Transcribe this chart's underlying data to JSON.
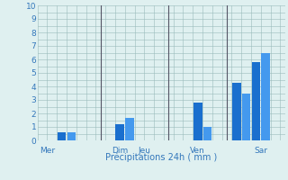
{
  "xlabel": "Précipitations 24h ( mm )",
  "background_color": "#dff0f0",
  "ylim": [
    0,
    10
  ],
  "yticks": [
    0,
    1,
    2,
    3,
    4,
    5,
    6,
    7,
    8,
    9,
    10
  ],
  "day_labels": [
    "Mer",
    "Dim",
    "Jeu",
    "Ven",
    "Sar"
  ],
  "bars": [
    {
      "x": 3,
      "height": 0.6,
      "color": "#1a6fce"
    },
    {
      "x": 4,
      "height": 0.6,
      "color": "#4499ee"
    },
    {
      "x": 9,
      "height": 1.2,
      "color": "#1a6fce"
    },
    {
      "x": 10,
      "height": 1.7,
      "color": "#4499ee"
    },
    {
      "x": 17,
      "height": 2.8,
      "color": "#1a6fce"
    },
    {
      "x": 18,
      "height": 1.0,
      "color": "#4499ee"
    },
    {
      "x": 21,
      "height": 4.3,
      "color": "#1a6fce"
    },
    {
      "x": 22,
      "height": 3.5,
      "color": "#4499ee"
    },
    {
      "x": 23,
      "height": 5.8,
      "color": "#1a6fce"
    },
    {
      "x": 24,
      "height": 6.5,
      "color": "#4499ee"
    }
  ],
  "grid_color": "#99bbbb",
  "grid_color_major": "#888888",
  "label_color": "#3377bb",
  "vline_positions": [
    7,
    14,
    20
  ],
  "vline_color": "#555566",
  "xlim": [
    0.5,
    26
  ],
  "bar_width": 0.9
}
